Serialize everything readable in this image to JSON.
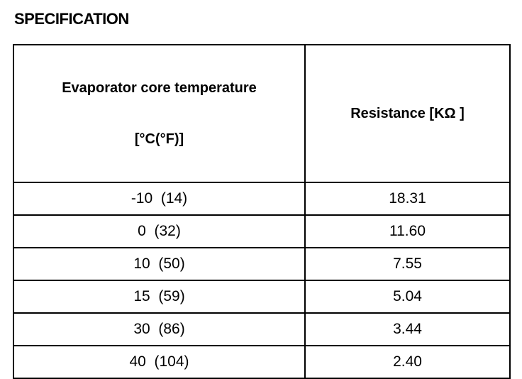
{
  "title": "SPECIFICATION",
  "table": {
    "header": [
      [
        "Evaporator core temperature",
        "[°C(°F)]"
      ],
      "Resistance [KΩ ]"
    ],
    "rows": [
      [
        "-10  (14)",
        "18.31"
      ],
      [
        "0  (32)",
        "11.60"
      ],
      [
        "10  (50)",
        "7.55"
      ],
      [
        "15  (59)",
        "5.04"
      ],
      [
        "30  (86)",
        "3.44"
      ],
      [
        "40  (104)",
        "2.40"
      ]
    ]
  }
}
